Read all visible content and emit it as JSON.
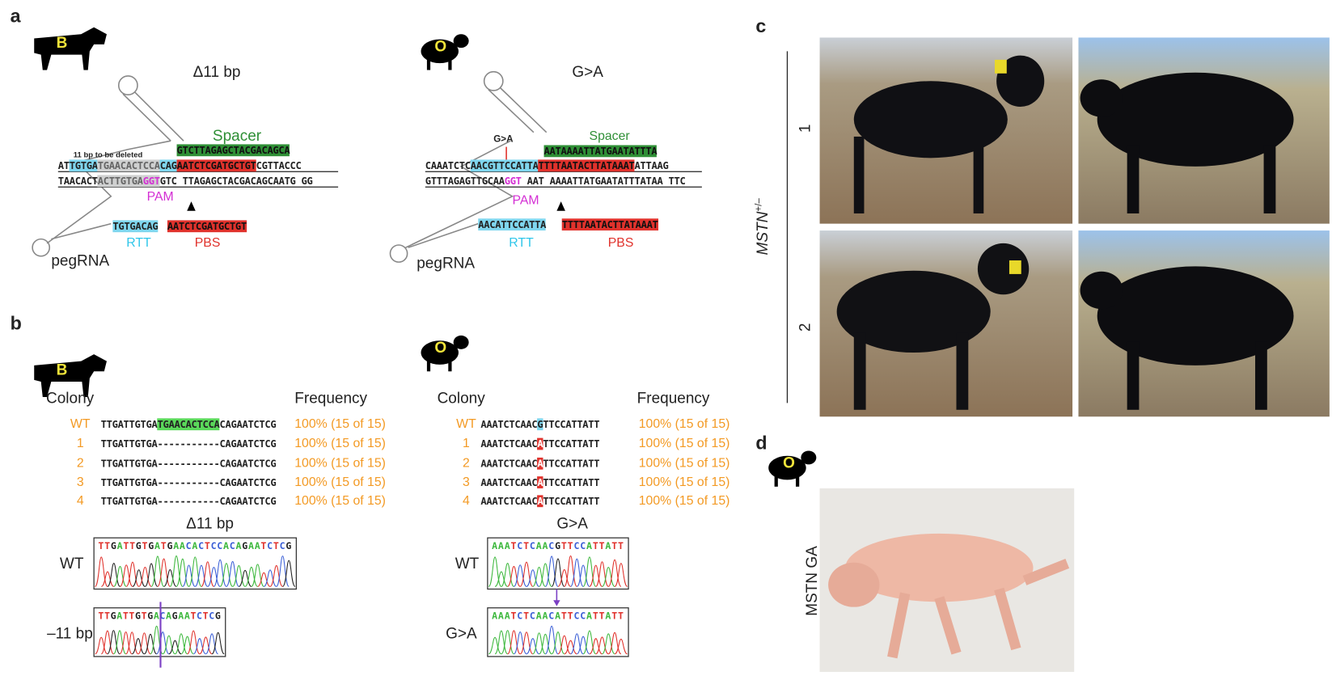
{
  "panel_a": {
    "label": "a",
    "left": {
      "icon": "B",
      "title": "Δ11 bp",
      "spacer_label": "Spacer",
      "spacer_seq": "GTCTTAGAGCTACGACAGCA",
      "deletion_note": "11 bp to be deleted",
      "top_strand": [
        "AT",
        "TGTGA",
        "TGAACACTCCA",
        "CAG",
        "AATCTCGATGCTGT",
        "CGTTACCC"
      ],
      "bottom_strand": [
        "TAACACT",
        "ACTTGTGA",
        "GGT",
        "GTC",
        "TTAGAGCTACGACAGCA",
        "ATG",
        "GG"
      ],
      "pam": "PAM",
      "rtt_seq": "TGTGACAG",
      "pbs_seq": "AATCTCGATGCTGT",
      "rtt": "RTT",
      "pbs": "PBS",
      "pegrna": "pegRNA"
    },
    "right": {
      "icon": "O",
      "title": "G>A",
      "edit": "G>A",
      "spacer_label": "Spacer",
      "spacer_seq": "AATAAAATTATGAATATTTA",
      "top_strand": [
        "CAAATCTC",
        "AACGTTCCATTA",
        "TTTTAATACTTATAAAT",
        "ATTAAG"
      ],
      "bottom_strand": [
        "GTTTAGAGTTGCAA",
        "GGT",
        "AAT",
        "AAAATTATGAATATTTA",
        "TAA",
        "TTC"
      ],
      "pam": "PAM",
      "rtt_seq": "AACATTCCATTA",
      "pbs_seq": "TTTTAATACTTATAAAT",
      "rtt": "RTT",
      "pbs": "PBS",
      "pegrna": "pegRNA"
    }
  },
  "panel_b": {
    "label": "b",
    "left": {
      "icon": "B",
      "colony_header": "Colony",
      "frequency_header": "Frequency",
      "rows": [
        {
          "colony": "WT",
          "sequence": [
            "TTGATTGTGA",
            "TGAACACTCCA",
            "CAGAATCTCG"
          ],
          "frequency": "100% (15 of 15)"
        },
        {
          "colony": "1",
          "sequence": [
            "TTGATTGTGA-----------CAGAATCTCG"
          ],
          "frequency": "100% (15 of 15)"
        },
        {
          "colony": "2",
          "sequence": [
            "TTGATTGTGA-----------CAGAATCTCG"
          ],
          "frequency": "100% (15 of 15)"
        },
        {
          "colony": "3",
          "sequence": [
            "TTGATTGTGA-----------CAGAATCTCG"
          ],
          "frequency": "100% (15 of 15)"
        },
        {
          "colony": "4",
          "sequence": [
            "TTGATTGTGA-----------CAGAATCTCG"
          ],
          "frequency": "100% (15 of 15)"
        }
      ],
      "chromatogram_title": "Δ11 bp",
      "traces": [
        {
          "label": "WT",
          "sequence": "TTGATTGTGATGAACACTCCACAGAATCTCG"
        },
        {
          "label": "–11 bp",
          "sequence": "TTGATTGTGACAGAATCTCG"
        }
      ]
    },
    "right": {
      "icon": "O",
      "colony_header": "Colony",
      "frequency_header": "Frequency",
      "rows": [
        {
          "colony": "WT",
          "sequence": [
            "AAATCTCAAC",
            "G",
            "TTCCATTATT"
          ],
          "frequency": "100% (15 of 15)"
        },
        {
          "colony": "1",
          "sequence": [
            "AAATCTCAAC",
            "A",
            "TTCCATTATT"
          ],
          "frequency": "100% (15 of 15)"
        },
        {
          "colony": "2",
          "sequence": [
            "AAATCTCAAC",
            "A",
            "TTCCATTATT"
          ],
          "frequency": "100% (15 of 15)"
        },
        {
          "colony": "3",
          "sequence": [
            "AAATCTCAAC",
            "A",
            "TTCCATTATT"
          ],
          "frequency": "100% (15 of 15)"
        },
        {
          "colony": "4",
          "sequence": [
            "AAATCTCAAC",
            "A",
            "TTCCATTATT"
          ],
          "frequency": "100% (15 of 15)"
        }
      ],
      "chromatogram_title": "G>A",
      "traces": [
        {
          "label": "WT",
          "sequence": "AAATCTCAACGTTCCATTATT"
        },
        {
          "label": "G>A",
          "sequence": "AAATCTCAACATTCCATTATT"
        }
      ]
    }
  },
  "panel_c": {
    "label": "c",
    "genotype": "MSTN",
    "genotype_sup": "+/–",
    "animals": [
      "1",
      "2"
    ]
  },
  "panel_d": {
    "label": "d",
    "icon": "O",
    "sample": "MSTN GA"
  }
}
